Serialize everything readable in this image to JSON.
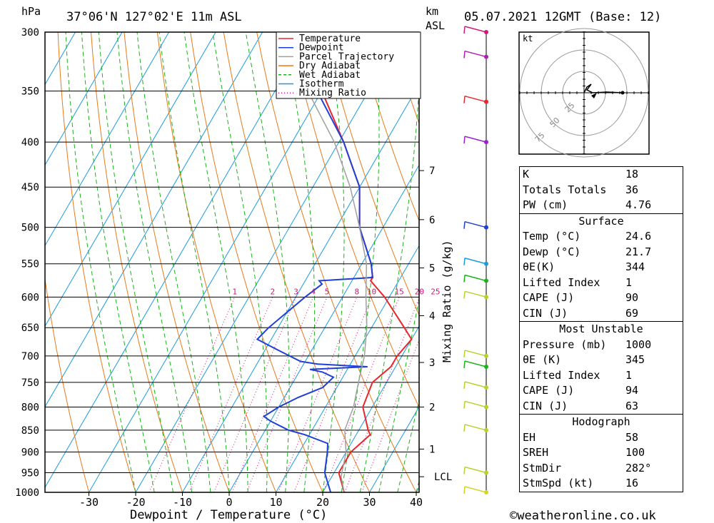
{
  "header": {
    "pressure_unit": "hPa",
    "location": "37°06'N  127°02'E  11m  ASL",
    "height_unit_line1": "km",
    "height_unit_line2": "ASL",
    "datetime": "05.07.2021  12GMT  (Base: 12)"
  },
  "footer": {
    "copyright": "©weatheronline.co.uk"
  },
  "colors": {
    "temperature": "#e8262d",
    "dewpoint": "#1f3fd6",
    "parcel": "#a0a0a0",
    "dry_adiabat": "#e87a1a",
    "wet_adiabat": "#19b419",
    "isotherm": "#1a9be0",
    "mixing_ratio": "#d4167a"
  },
  "chart_data": {
    "type": "line",
    "subtype": "skew-T log-P",
    "xlabel": "Dewpoint / Temperature (°C)",
    "ylabel": "hPa",
    "right_label": "Mixing Ratio (g/kg)",
    "pressure_levels": [
      300,
      350,
      400,
      450,
      500,
      550,
      600,
      650,
      700,
      750,
      800,
      850,
      900,
      950,
      1000
    ],
    "temperature_ticks": [
      -30,
      -20,
      -10,
      0,
      10,
      20,
      30,
      40
    ],
    "xlim": [
      -40,
      40
    ],
    "ylim": [
      1000,
      300
    ],
    "height_ticks_km": [
      {
        "label": "7",
        "p": 431
      },
      {
        "label": "6",
        "p": 490
      },
      {
        "label": "5",
        "p": 556
      },
      {
        "label": "4",
        "p": 630
      },
      {
        "label": "3",
        "p": 712
      },
      {
        "label": "2",
        "p": 800
      },
      {
        "label": "1",
        "p": 893
      },
      {
        "label": "LCL",
        "p": 960
      }
    ],
    "mixing_ratio_labels": [
      "1",
      "2",
      "3",
      "4",
      "5",
      "8",
      "10",
      "15",
      "20",
      "25"
    ],
    "legend": [
      "Temperature",
      "Dewpoint",
      "Parcel Trajectory",
      "Dry Adiabat",
      "Wet Adiabat",
      "Isotherm",
      "Mixing Ratio"
    ],
    "series": [
      {
        "name": "Temperature",
        "points": [
          [
            1000,
            24.6
          ],
          [
            950,
            21
          ],
          [
            900,
            21
          ],
          [
            860,
            23
          ],
          [
            850,
            22
          ],
          [
            800,
            18
          ],
          [
            750,
            17
          ],
          [
            720,
            19
          ],
          [
            700,
            19
          ],
          [
            670,
            20
          ],
          [
            650,
            17
          ],
          [
            600,
            9
          ],
          [
            575,
            4
          ],
          [
            570,
            4
          ],
          [
            550,
            2
          ],
          [
            500,
            -5
          ],
          [
            450,
            -10
          ],
          [
            400,
            -19
          ],
          [
            350,
            -30
          ],
          [
            300,
            -41
          ]
        ]
      },
      {
        "name": "Dewpoint",
        "points": [
          [
            1000,
            21.7
          ],
          [
            950,
            18
          ],
          [
            900,
            16
          ],
          [
            880,
            15
          ],
          [
            860,
            9
          ],
          [
            850,
            5
          ],
          [
            830,
            0
          ],
          [
            820,
            -2
          ],
          [
            800,
            0
          ],
          [
            780,
            3
          ],
          [
            760,
            7
          ],
          [
            740,
            8
          ],
          [
            730,
            5
          ],
          [
            725,
            2
          ],
          [
            720,
            14
          ],
          [
            715,
            3
          ],
          [
            710,
            -1
          ],
          [
            700,
            -4
          ],
          [
            680,
            -10
          ],
          [
            670,
            -13
          ],
          [
            650,
            -12
          ],
          [
            600,
            -8
          ],
          [
            580,
            -6
          ],
          [
            575,
            -7
          ],
          [
            570,
            4
          ],
          [
            550,
            2
          ],
          [
            500,
            -5
          ],
          [
            450,
            -10
          ],
          [
            400,
            -19
          ],
          [
            350,
            -31
          ],
          [
            300,
            -42
          ]
        ]
      },
      {
        "name": "Parcel Trajectory",
        "points": [
          [
            1000,
            24.6
          ],
          [
            960,
            22
          ],
          [
            900,
            20
          ],
          [
            850,
            17
          ],
          [
            800,
            16
          ],
          [
            750,
            14
          ],
          [
            700,
            12
          ],
          [
            650,
            9
          ],
          [
            600,
            5
          ],
          [
            550,
            1
          ],
          [
            500,
            -5
          ],
          [
            450,
            -12
          ],
          [
            400,
            -21
          ],
          [
            350,
            -33
          ],
          [
            300,
            -46
          ]
        ]
      }
    ]
  },
  "hodograph": {
    "unit": "kt",
    "rings": [
      "25",
      "50",
      "75"
    ]
  },
  "indices": {
    "k_label": "K",
    "k_value": "18",
    "tt_label": "Totals Totals",
    "tt_value": "36",
    "pw_label": "PW (cm)",
    "pw_value": "4.76"
  },
  "surface": {
    "title": "Surface",
    "temp_label": "Temp (°C)",
    "temp_value": "24.6",
    "dewp_label": "Dewp (°C)",
    "dewp_value": "21.7",
    "theta_label": "θE(K)",
    "theta_value": "344",
    "li_label": "Lifted Index",
    "li_value": "1",
    "cape_label": "CAPE (J)",
    "cape_value": "90",
    "cin_label": "CIN (J)",
    "cin_value": "69"
  },
  "most_unstable": {
    "title": "Most Unstable",
    "pressure_label": "Pressure (mb)",
    "pressure_value": "1000",
    "theta_label": "θE (K)",
    "theta_value": "345",
    "li_label": "Lifted Index",
    "li_value": "1",
    "cape_label": "CAPE (J)",
    "cape_value": "94",
    "cin_label": "CIN (J)",
    "cin_value": "63"
  },
  "hodograph_table": {
    "title": "Hodograph",
    "eh_label": "EH",
    "eh_value": "58",
    "srh_label": "SREH",
    "srh_value": "100",
    "dir_label": "StmDir",
    "dir_value": "282°",
    "spd_label": "StmSpd (kt)",
    "spd_value": "16"
  }
}
